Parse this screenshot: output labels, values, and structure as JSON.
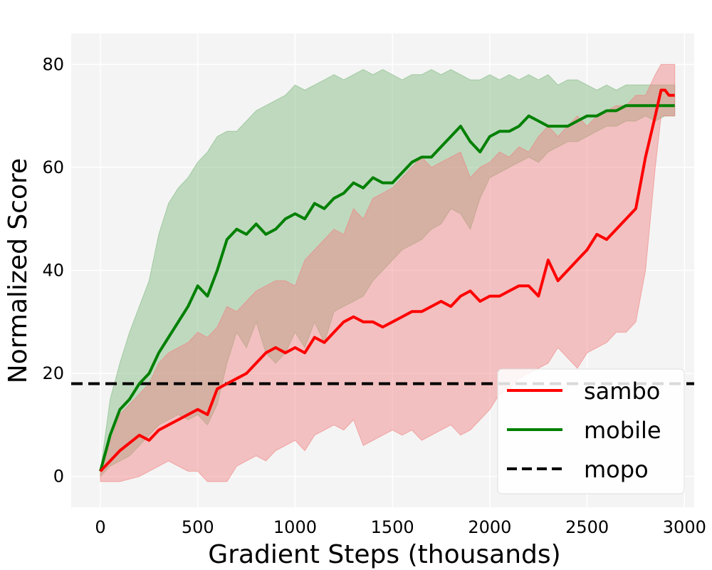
{
  "chart_data": {
    "type": "line",
    "title": "",
    "xlabel": "Gradient Steps (thousands)",
    "ylabel": "Normalized Score",
    "xlim": [
      -150,
      3050
    ],
    "ylim": [
      -6,
      86
    ],
    "x_ticks": [
      0,
      500,
      1000,
      1500,
      2000,
      2500,
      3000
    ],
    "y_ticks": [
      0,
      20,
      40,
      60,
      80
    ],
    "x_tick_labels": [
      "0",
      "500",
      "1000",
      "1500",
      "2000",
      "2500",
      "3000"
    ],
    "y_tick_labels": [
      "0",
      "20",
      "40",
      "60",
      "80"
    ],
    "grid": true,
    "background": "#f4f4f4",
    "legend": {
      "position": "lower-right",
      "entries": [
        "sambo",
        "mobile",
        "mopo"
      ]
    },
    "series": [
      {
        "name": "sambo",
        "color": "#ff0000",
        "band_color": "#f08080",
        "style": "solid",
        "x": [
          0,
          100,
          200,
          250,
          300,
          350,
          400,
          450,
          500,
          550,
          600,
          650,
          700,
          750,
          800,
          850,
          900,
          950,
          1000,
          1050,
          1100,
          1150,
          1200,
          1250,
          1300,
          1350,
          1400,
          1450,
          1500,
          1550,
          1600,
          1650,
          1700,
          1750,
          1800,
          1850,
          1900,
          1950,
          2000,
          2050,
          2100,
          2150,
          2200,
          2250,
          2300,
          2350,
          2400,
          2450,
          2500,
          2550,
          2600,
          2650,
          2700,
          2750,
          2800,
          2850,
          2880,
          2900,
          2920,
          2950
        ],
        "mean": [
          1,
          5,
          8,
          7,
          9,
          10,
          11,
          12,
          13,
          12,
          17,
          18,
          19,
          20,
          22,
          24,
          25,
          24,
          25,
          24,
          27,
          26,
          28,
          30,
          31,
          30,
          30,
          29,
          30,
          31,
          32,
          32,
          33,
          34,
          33,
          35,
          36,
          34,
          35,
          35,
          36,
          37,
          37,
          35,
          42,
          38,
          40,
          42,
          44,
          47,
          46,
          48,
          50,
          52,
          62,
          70,
          75,
          75,
          74,
          74
        ],
        "upper": [
          1,
          12,
          16,
          18,
          22,
          24,
          25,
          26,
          28,
          27,
          29,
          33,
          32,
          34,
          36,
          37,
          38,
          38,
          37,
          42,
          44,
          46,
          48,
          47,
          52,
          50,
          54,
          55,
          56,
          58,
          60,
          62,
          60,
          61,
          62,
          63,
          58,
          60,
          61,
          63,
          62,
          64,
          63,
          66,
          68,
          66,
          68,
          70,
          68,
          70,
          71,
          72,
          72,
          74,
          74,
          78,
          80,
          80,
          80,
          80
        ],
        "lower": [
          -1,
          -1,
          0,
          1,
          2,
          3,
          2,
          1,
          1,
          -1,
          -1,
          -1,
          2,
          3,
          4,
          3,
          5,
          6,
          7,
          5,
          8,
          9,
          10,
          9,
          11,
          6,
          7,
          8,
          9,
          8,
          9,
          7,
          8,
          9,
          10,
          8,
          9,
          11,
          13,
          16,
          17,
          19,
          20,
          21,
          22,
          25,
          23,
          21,
          24,
          25,
          26,
          28,
          28,
          30,
          40,
          60,
          70,
          70,
          70,
          70
        ]
      },
      {
        "name": "mobile",
        "color": "#008000",
        "band_color": "#7fb97f",
        "style": "solid",
        "x": [
          0,
          50,
          100,
          150,
          200,
          250,
          300,
          350,
          400,
          450,
          500,
          550,
          600,
          650,
          700,
          750,
          800,
          850,
          900,
          950,
          1000,
          1050,
          1100,
          1150,
          1200,
          1250,
          1300,
          1350,
          1400,
          1450,
          1500,
          1550,
          1600,
          1650,
          1700,
          1750,
          1800,
          1850,
          1900,
          1950,
          2000,
          2050,
          2100,
          2150,
          2200,
          2250,
          2300,
          2350,
          2400,
          2450,
          2500,
          2550,
          2600,
          2650,
          2700,
          2750,
          2800,
          2850,
          2900,
          2950
        ],
        "mean": [
          1,
          8,
          13,
          15,
          18,
          20,
          24,
          27,
          30,
          33,
          37,
          35,
          40,
          46,
          48,
          47,
          49,
          47,
          48,
          50,
          51,
          50,
          53,
          52,
          54,
          55,
          57,
          56,
          58,
          57,
          57,
          59,
          61,
          62,
          62,
          64,
          66,
          68,
          65,
          63,
          66,
          67,
          67,
          68,
          70,
          69,
          68,
          68,
          68,
          69,
          70,
          70,
          71,
          71,
          72,
          72,
          72,
          72,
          72,
          72
        ],
        "upper": [
          1,
          15,
          22,
          28,
          33,
          38,
          47,
          53,
          56,
          58,
          61,
          63,
          66,
          67,
          67,
          69,
          71,
          72,
          73,
          74,
          76,
          75,
          76,
          77,
          78,
          77,
          78,
          79,
          78,
          79,
          78,
          77,
          78,
          78,
          79,
          78,
          79,
          78,
          77,
          77,
          78,
          77,
          78,
          77,
          78,
          77,
          78,
          76,
          77,
          77,
          76,
          75,
          76,
          75,
          76,
          76,
          76,
          76,
          76,
          76
        ],
        "lower": [
          0,
          2,
          3,
          4,
          6,
          8,
          10,
          11,
          12,
          11,
          12,
          10,
          14,
          22,
          28,
          25,
          30,
          24,
          22,
          24,
          28,
          25,
          30,
          26,
          32,
          33,
          34,
          35,
          38,
          40,
          42,
          44,
          45,
          46,
          48,
          49,
          52,
          51,
          48,
          54,
          58,
          59,
          60,
          61,
          62,
          61,
          63,
          64,
          65,
          65,
          66,
          67,
          68,
          68,
          69,
          69,
          70,
          69,
          70,
          70
        ]
      },
      {
        "name": "mopo",
        "color": "#000000",
        "style": "dashed",
        "y_constant": 18
      }
    ]
  }
}
